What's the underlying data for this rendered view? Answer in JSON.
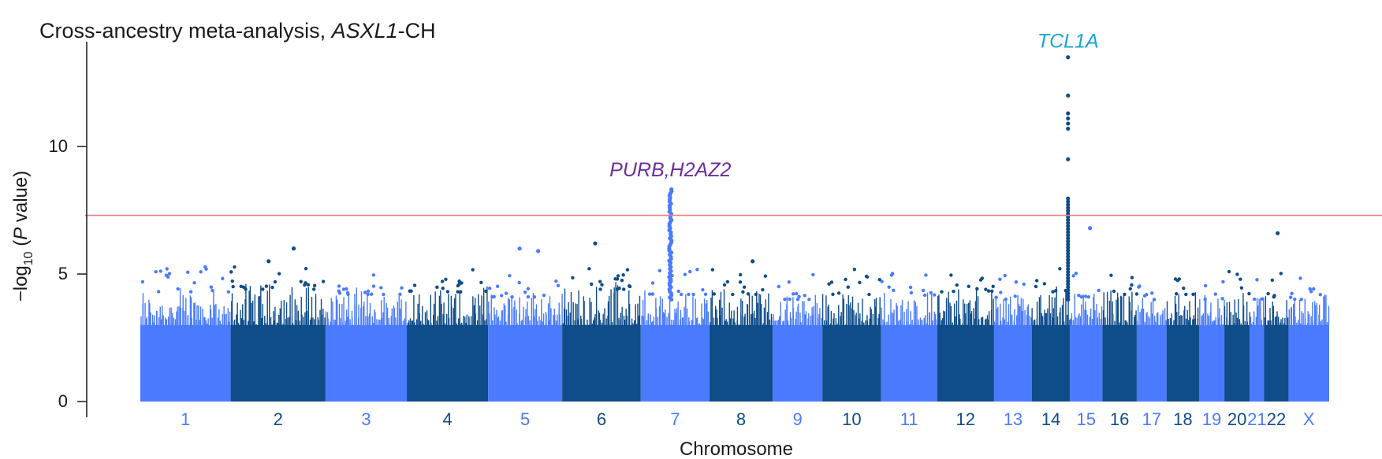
{
  "title": {
    "prefix": "Cross-ancestry meta-analysis, ",
    "gene": "ASXL1",
    "suffix": "-CH"
  },
  "colors": {
    "light": "#4a7bff",
    "dark": "#0f4c8a",
    "threshold": "#f08080",
    "tcl1a": "#1ba3d6",
    "purb": "#6b2e9e"
  },
  "chart_data": {
    "type": "scatter",
    "subtype": "manhattan",
    "xlabel": "Chromosome",
    "ylabel_parts": {
      "pre": "−log",
      "sub": "10",
      "open": " (",
      "it": "P",
      "post": " value)"
    },
    "ylim": [
      0,
      13.8
    ],
    "yticks": [
      0,
      5,
      10
    ],
    "threshold": 7.3,
    "chromosomes": [
      {
        "label": "1",
        "color": "light",
        "base": 4.3
      },
      {
        "label": "2",
        "color": "dark",
        "base": 4.4
      },
      {
        "label": "3",
        "color": "light",
        "base": 4.2
      },
      {
        "label": "4",
        "color": "dark",
        "base": 4.3
      },
      {
        "label": "5",
        "color": "light",
        "base": 4.1
      },
      {
        "label": "6",
        "color": "dark",
        "base": 4.4
      },
      {
        "label": "7",
        "color": "light",
        "base": 4.2
      },
      {
        "label": "8",
        "color": "dark",
        "base": 4.2
      },
      {
        "label": "9",
        "color": "light",
        "base": 4.0
      },
      {
        "label": "10",
        "color": "dark",
        "base": 4.2
      },
      {
        "label": "11",
        "color": "light",
        "base": 4.1
      },
      {
        "label": "12",
        "color": "dark",
        "base": 4.3
      },
      {
        "label": "13",
        "color": "light",
        "base": 4.0
      },
      {
        "label": "14",
        "color": "dark",
        "base": 4.3
      },
      {
        "label": "15",
        "color": "light",
        "base": 4.1
      },
      {
        "label": "16",
        "color": "dark",
        "base": 4.2
      },
      {
        "label": "17",
        "color": "light",
        "base": 4.0
      },
      {
        "label": "18",
        "color": "dark",
        "base": 4.2
      },
      {
        "label": "19",
        "color": "light",
        "base": 4.0
      },
      {
        "label": "20",
        "color": "dark",
        "base": 4.2
      },
      {
        "label": "21",
        "color": "light",
        "base": 4.0
      },
      {
        "label": "22",
        "color": "dark",
        "base": 4.1
      },
      {
        "label": "X",
        "color": "light",
        "base": 4.0
      }
    ],
    "loci": [
      {
        "gene": "PURB,H2AZ2",
        "chromosome": "7",
        "peak": 8.4,
        "color": "purb"
      },
      {
        "gene": "TCL1A",
        "chromosome": "14",
        "peak": 13.5,
        "color": "tcl1a"
      }
    ],
    "notable_points": [
      {
        "chromosome": "2",
        "value": 6.0
      },
      {
        "chromosome": "2",
        "value": 5.5
      },
      {
        "chromosome": "5",
        "value": 6.0
      },
      {
        "chromosome": "5",
        "value": 5.9
      },
      {
        "chromosome": "6",
        "value": 6.2
      },
      {
        "chromosome": "8",
        "value": 5.5
      },
      {
        "chromosome": "15",
        "value": 6.8
      },
      {
        "chromosome": "22",
        "value": 6.6
      }
    ]
  }
}
